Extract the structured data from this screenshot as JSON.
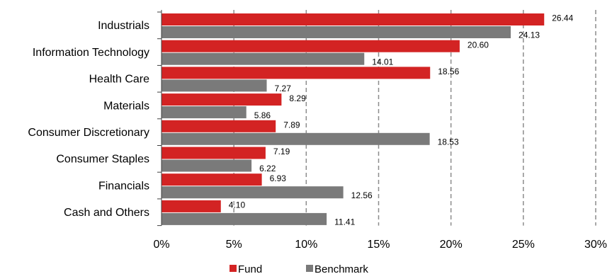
{
  "chart_data": {
    "type": "bar",
    "orientation": "horizontal",
    "categories": [
      "Industrials",
      "Information Technology",
      "Health Care",
      "Materials",
      "Consumer Discretionary",
      "Consumer Staples",
      "Financials",
      "Cash and Others"
    ],
    "series": [
      {
        "name": "Fund",
        "color": "#d32323",
        "values": [
          26.44,
          20.6,
          18.56,
          8.29,
          7.89,
          7.19,
          6.93,
          4.1
        ],
        "labels": [
          "26.44",
          "20.60",
          "18.56",
          "8.29",
          "7.89",
          "7.19",
          "6.93",
          "4.10"
        ]
      },
      {
        "name": "Benchmark",
        "color": "#7a7a7a",
        "values": [
          24.13,
          14.01,
          7.27,
          5.86,
          18.53,
          6.22,
          12.56,
          11.41
        ],
        "labels": [
          "24.13",
          "14.01",
          "7.27",
          "5.86",
          "18.53",
          "6.22",
          "12.56",
          "11.41"
        ]
      }
    ],
    "xlim": [
      0,
      30
    ],
    "xticks": [
      0,
      5,
      10,
      15,
      20,
      25,
      30
    ],
    "xtick_labels": [
      "0%",
      "5%",
      "10%",
      "15%",
      "20%",
      "25%",
      "30%"
    ],
    "grid": "vertical-dashed",
    "legend_position": "bottom"
  }
}
